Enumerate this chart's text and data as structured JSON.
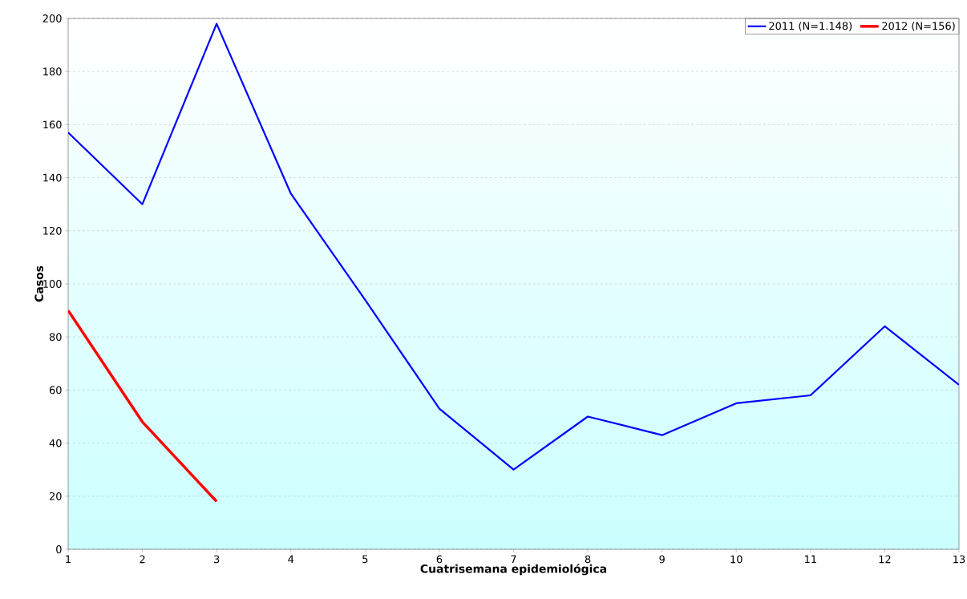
{
  "chart_data": {
    "type": "line",
    "xlabel": "Cuatrisemana epidemiológica",
    "ylabel": "Casos",
    "x": [
      1,
      2,
      3,
      4,
      5,
      6,
      7,
      8,
      9,
      10,
      11,
      12,
      13
    ],
    "series": [
      {
        "name": "2011 (N=1.148)",
        "color": "#0000ff",
        "values": [
          157,
          130,
          198,
          134,
          94,
          53,
          30,
          50,
          43,
          55,
          58,
          84,
          62
        ]
      },
      {
        "name": "2012 (N=156)",
        "color": "#ff0000",
        "values": [
          90,
          48,
          18,
          null,
          null,
          null,
          null,
          null,
          null,
          null,
          null,
          null,
          null
        ]
      }
    ],
    "xlim": [
      1,
      13
    ],
    "xticks": [
      1,
      2,
      3,
      4,
      5,
      6,
      7,
      8,
      9,
      10,
      11,
      12,
      13
    ],
    "ylim": [
      0,
      200
    ],
    "yticks": [
      0,
      20,
      40,
      60,
      80,
      100,
      120,
      140,
      160,
      180,
      200
    ],
    "grid": "y",
    "legend": "top right",
    "marker": "none",
    "line_style": "solid"
  }
}
